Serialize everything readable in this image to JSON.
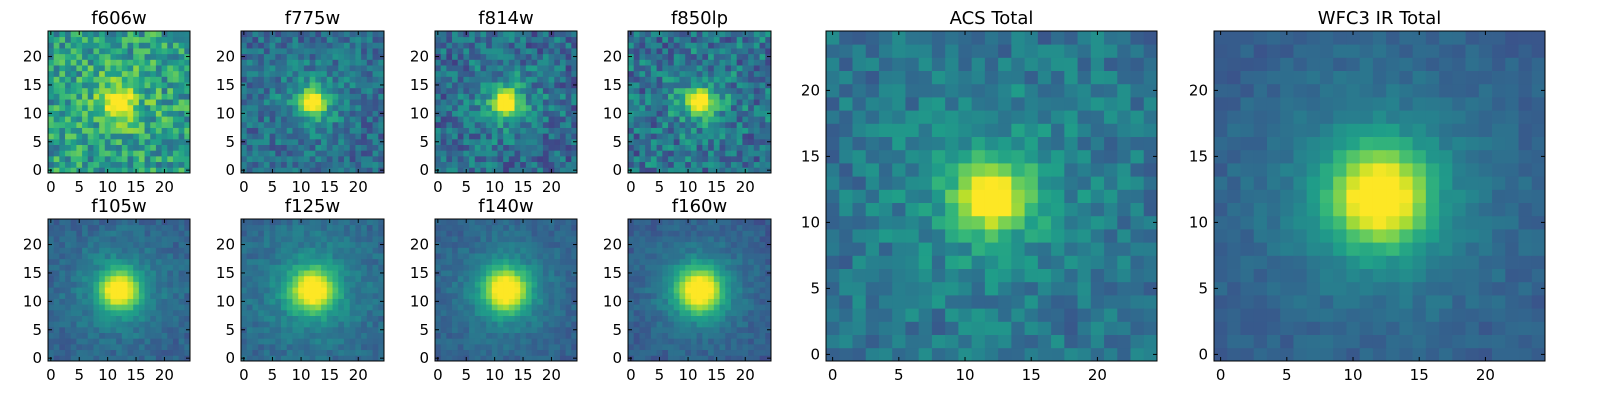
{
  "chart_data": [
    {
      "type": "heatmap",
      "title": "f606w",
      "colormap": "viridis",
      "xticks": [
        0,
        5,
        10,
        15,
        20
      ],
      "yticks": [
        0,
        5,
        10,
        15,
        20
      ],
      "xlim": [
        -0.5,
        24.5
      ],
      "ylim": [
        -0.5,
        24.5
      ],
      "grid_size": 25,
      "peak_pixel": [
        12,
        12
      ],
      "peak_width": 1.6,
      "background_level": 0.55,
      "noise_level": 0.22
    },
    {
      "type": "heatmap",
      "title": "f775w",
      "colormap": "viridis",
      "xticks": [
        0,
        5,
        10,
        15,
        20
      ],
      "yticks": [
        0,
        5,
        10,
        15,
        20
      ],
      "xlim": [
        -0.5,
        24.5
      ],
      "ylim": [
        -0.5,
        24.5
      ],
      "grid_size": 25,
      "peak_pixel": [
        12,
        12
      ],
      "peak_width": 1.6,
      "background_level": 0.35,
      "noise_level": 0.15
    },
    {
      "type": "heatmap",
      "title": "f814w",
      "colormap": "viridis",
      "xticks": [
        0,
        5,
        10,
        15,
        20
      ],
      "yticks": [
        0,
        5,
        10,
        15,
        20
      ],
      "xlim": [
        -0.5,
        24.5
      ],
      "ylim": [
        -0.5,
        24.5
      ],
      "grid_size": 25,
      "peak_pixel": [
        12,
        12
      ],
      "peak_width": 1.6,
      "background_level": 0.35,
      "noise_level": 0.18
    },
    {
      "type": "heatmap",
      "title": "f850lp",
      "colormap": "viridis",
      "xticks": [
        0,
        5,
        10,
        15,
        20
      ],
      "yticks": [
        0,
        5,
        10,
        15,
        20
      ],
      "xlim": [
        -0.5,
        24.5
      ],
      "ylim": [
        -0.5,
        24.5
      ],
      "grid_size": 25,
      "peak_pixel": [
        12,
        12
      ],
      "peak_width": 1.5,
      "background_level": 0.38,
      "noise_level": 0.2
    },
    {
      "type": "heatmap",
      "title": "f105w",
      "colormap": "viridis",
      "xticks": [
        0,
        5,
        10,
        15,
        20
      ],
      "yticks": [
        0,
        5,
        10,
        15,
        20
      ],
      "xlim": [
        -0.5,
        24.5
      ],
      "ylim": [
        -0.5,
        24.5
      ],
      "grid_size": 25,
      "peak_pixel": [
        12,
        12
      ],
      "peak_width": 2.4,
      "background_level": 0.3,
      "noise_level": 0.07
    },
    {
      "type": "heatmap",
      "title": "f125w",
      "colormap": "viridis",
      "xticks": [
        0,
        5,
        10,
        15,
        20
      ],
      "yticks": [
        0,
        5,
        10,
        15,
        20
      ],
      "xlim": [
        -0.5,
        24.5
      ],
      "ylim": [
        -0.5,
        24.5
      ],
      "grid_size": 25,
      "peak_pixel": [
        12,
        12
      ],
      "peak_width": 2.6,
      "background_level": 0.32,
      "noise_level": 0.07
    },
    {
      "type": "heatmap",
      "title": "f140w",
      "colormap": "viridis",
      "xticks": [
        0,
        5,
        10,
        15,
        20
      ],
      "yticks": [
        0,
        5,
        10,
        15,
        20
      ],
      "xlim": [
        -0.5,
        24.5
      ],
      "ylim": [
        -0.5,
        24.5
      ],
      "grid_size": 25,
      "peak_pixel": [
        12,
        12
      ],
      "peak_width": 2.7,
      "background_level": 0.28,
      "noise_level": 0.06
    },
    {
      "type": "heatmap",
      "title": "f160w",
      "colormap": "viridis",
      "xticks": [
        0,
        5,
        10,
        15,
        20
      ],
      "yticks": [
        0,
        5,
        10,
        15,
        20
      ],
      "xlim": [
        -0.5,
        24.5
      ],
      "ylim": [
        -0.5,
        24.5
      ],
      "grid_size": 25,
      "peak_pixel": [
        12,
        12
      ],
      "peak_width": 2.8,
      "background_level": 0.26,
      "noise_level": 0.06
    },
    {
      "type": "heatmap",
      "title": "ACS Total",
      "colormap": "viridis",
      "xticks": [
        0,
        5,
        10,
        15,
        20
      ],
      "yticks": [
        0,
        5,
        10,
        15,
        20
      ],
      "xlim": [
        -0.5,
        24.5
      ],
      "ylim": [
        -0.5,
        24.5
      ],
      "grid_size": 25,
      "peak_pixel": [
        12,
        12
      ],
      "peak_width": 1.8,
      "background_level": 0.38,
      "noise_level": 0.12
    },
    {
      "type": "heatmap",
      "title": "WFC3 IR Total",
      "colormap": "viridis",
      "xticks": [
        0,
        5,
        10,
        15,
        20
      ],
      "yticks": [
        0,
        5,
        10,
        15,
        20
      ],
      "xlim": [
        -0.5,
        24.5
      ],
      "ylim": [
        -0.5,
        24.5
      ],
      "grid_size": 25,
      "peak_pixel": [
        12,
        12
      ],
      "peak_width": 2.6,
      "background_level": 0.28,
      "noise_level": 0.05
    }
  ]
}
